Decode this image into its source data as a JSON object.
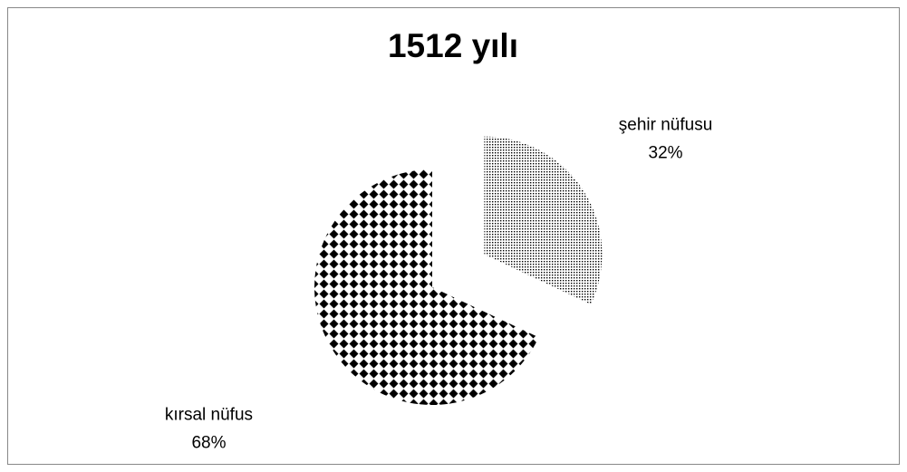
{
  "chart_data": {
    "type": "pie",
    "title": "1512 yılı",
    "categories": [
      "şehir nüfusu",
      "kırsal nüfus"
    ],
    "values": [
      32,
      68
    ],
    "value_labels": [
      "32%",
      "68%"
    ]
  }
}
